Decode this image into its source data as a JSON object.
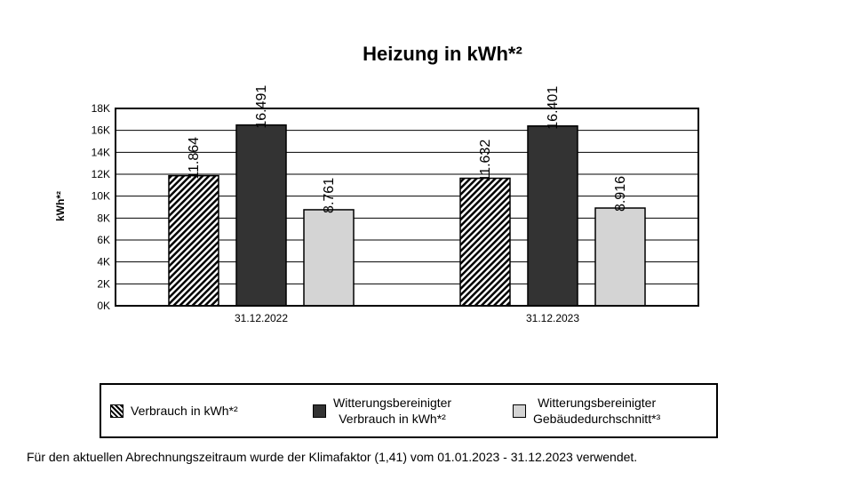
{
  "chart_data": {
    "type": "bar",
    "title": "Heizung in kWh*²",
    "ylabel": "kWh*²",
    "xlabel": "",
    "categories": [
      "31.12.2022",
      "31.12.2023"
    ],
    "ylim": [
      0,
      18000
    ],
    "yticks": [
      "0K",
      "2K",
      "4K",
      "6K",
      "8K",
      "10K",
      "12K",
      "14K",
      "16K",
      "18K"
    ],
    "grid": true,
    "series": [
      {
        "name": "Verbrauch in kWh*²",
        "values": [
          11864,
          11632
        ],
        "labels": [
          "11.864",
          "11.632"
        ],
        "color": "#000000",
        "pattern": "hatch"
      },
      {
        "name": "Witterungsbereinigter Verbrauch in kWh*²",
        "values": [
          16491,
          16401
        ],
        "labels": [
          "16.491",
          "16.401"
        ],
        "color": "#333333"
      },
      {
        "name": "Witterungsbereinigter Gebäudedurchschnitt*³",
        "values": [
          8761,
          8916
        ],
        "labels": [
          "8.761",
          "8.916"
        ],
        "color": "#d4d4d4"
      }
    ],
    "legend": "bottom"
  },
  "legend": {
    "item1": "Verbrauch in kWh*²",
    "item2_line1": "Witterungsbereinigter",
    "item2_line2": "Verbrauch in kWh*²",
    "item3_line1": "Witterungsbereinigter",
    "item3_line2": "Gebäudedurchschnitt*³"
  },
  "footnote": "Für den aktuellen Abrechnungszeitraum wurde der Klimafaktor (1,41) vom 01.01.2023 - 31.12.2023 verwendet."
}
